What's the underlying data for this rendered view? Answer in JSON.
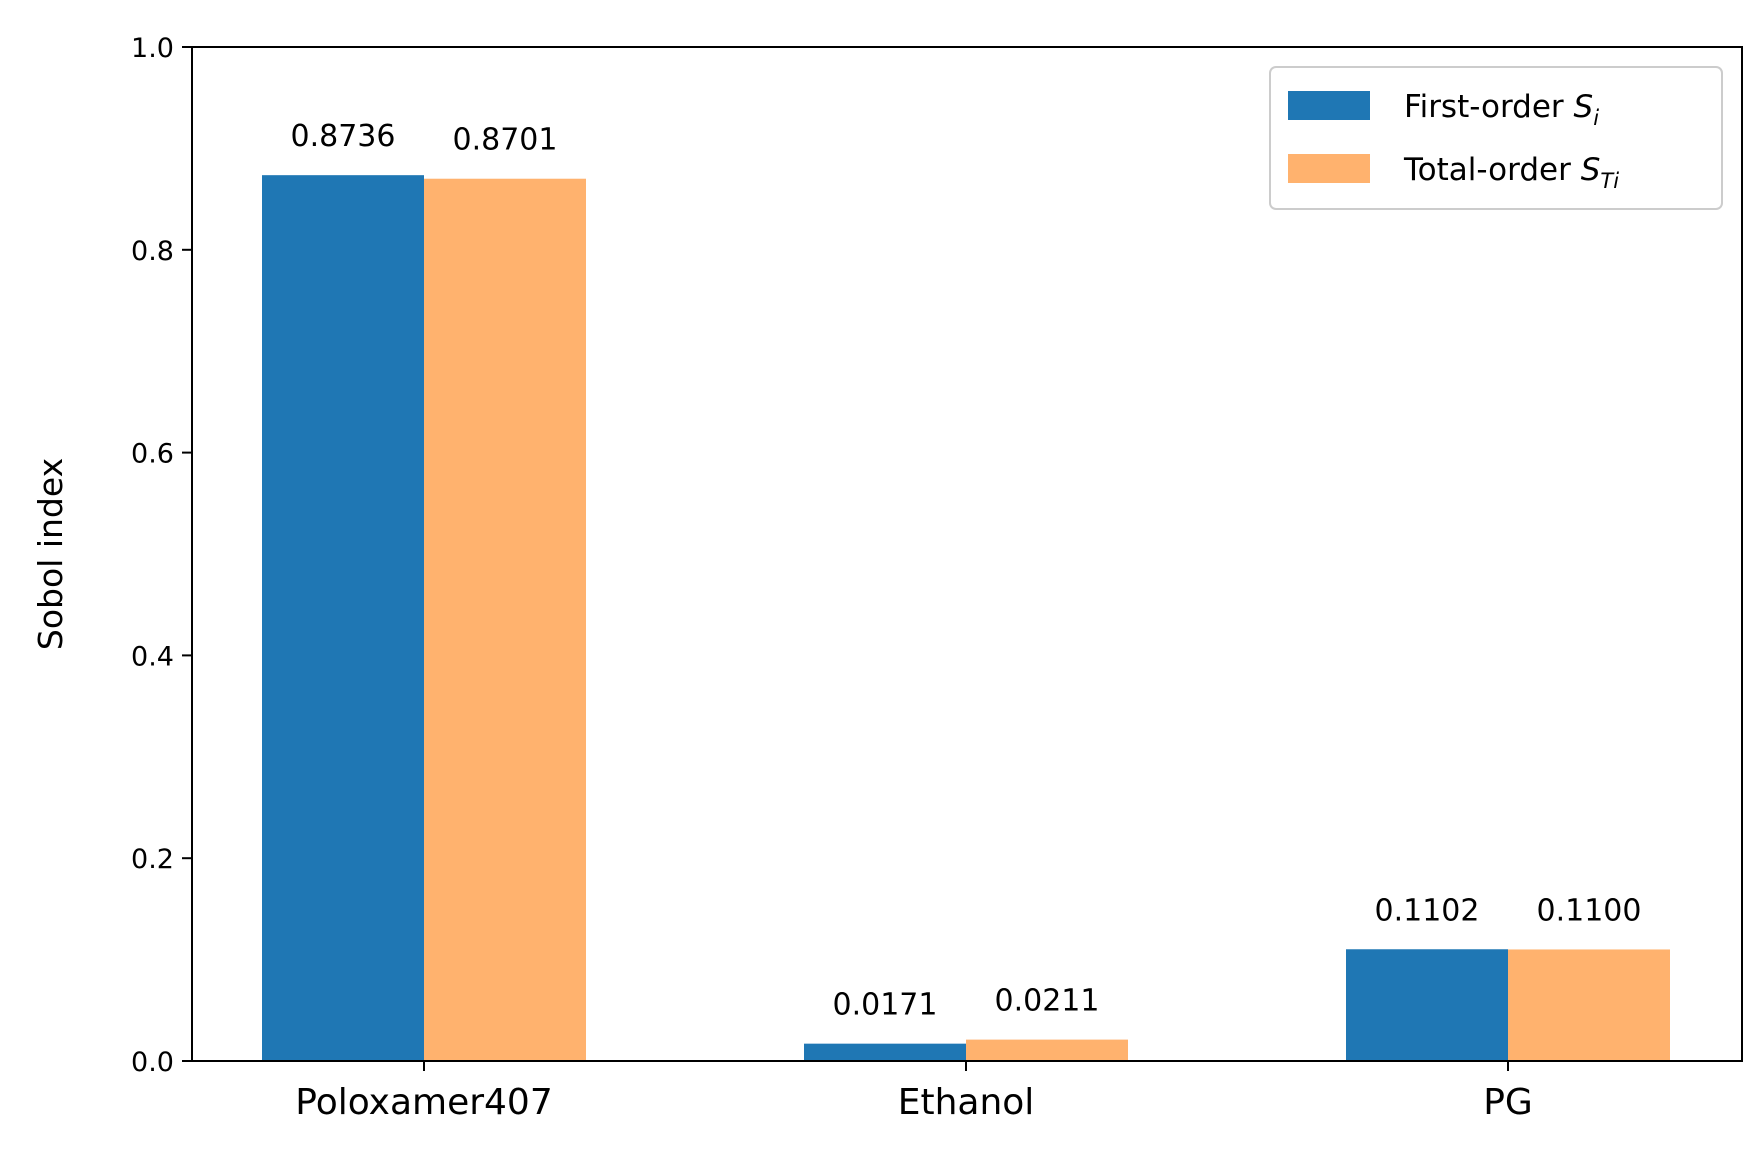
{
  "chart_data": {
    "type": "bar",
    "title": "",
    "xlabel": "",
    "ylabel": "Sobol index",
    "ylim": [
      0,
      1.0
    ],
    "yticks": [
      "0.0",
      "0.2",
      "0.4",
      "0.6",
      "0.8",
      "1.0"
    ],
    "categories": [
      "Poloxamer407",
      "Ethanol",
      "PG"
    ],
    "series": [
      {
        "name": "First-order S_i",
        "legend_text": "First-order ",
        "legend_symbol": "S",
        "legend_subscript": "i",
        "color": "#1f77b4",
        "values": [
          0.8736,
          0.0171,
          0.1102
        ],
        "labels": [
          "0.8736",
          "0.0171",
          "0.1102"
        ]
      },
      {
        "name": "Total-order S_Ti",
        "legend_text": "Total-order ",
        "legend_symbol": "S",
        "legend_subscript": "Ti",
        "color": "#ffb26e",
        "values": [
          0.8701,
          0.0211,
          0.11
        ],
        "labels": [
          "0.8701",
          "0.0211",
          "0.1100"
        ]
      }
    ],
    "grid": false,
    "legend_position": "top-right"
  }
}
